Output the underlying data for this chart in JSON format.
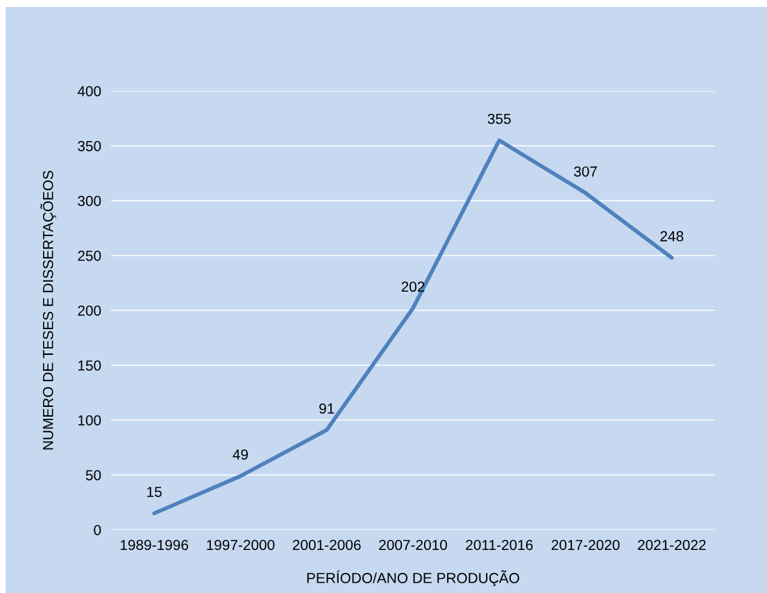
{
  "chart_data": {
    "type": "line",
    "xlabel": "PERÍODO/ANO DE PRODUÇÃO",
    "ylabel": "NUMERO DE TESES E DISSERTAÇÕEOS",
    "categories": [
      "1989-1996",
      "1997-2000",
      "2001-2006",
      "2007-2010",
      "2011-2016",
      "2017-2020",
      "2021-2022"
    ],
    "series": [
      {
        "color": "#4f81bd",
        "values": [
          15,
          49,
          91,
          202,
          355,
          307,
          248
        ]
      }
    ],
    "ylim": [
      0,
      400
    ],
    "yticks": [
      0,
      50,
      100,
      150,
      200,
      250,
      300,
      350,
      400
    ],
    "grid": "y",
    "data_labels": true,
    "marker": "none",
    "line_style": "solid"
  }
}
